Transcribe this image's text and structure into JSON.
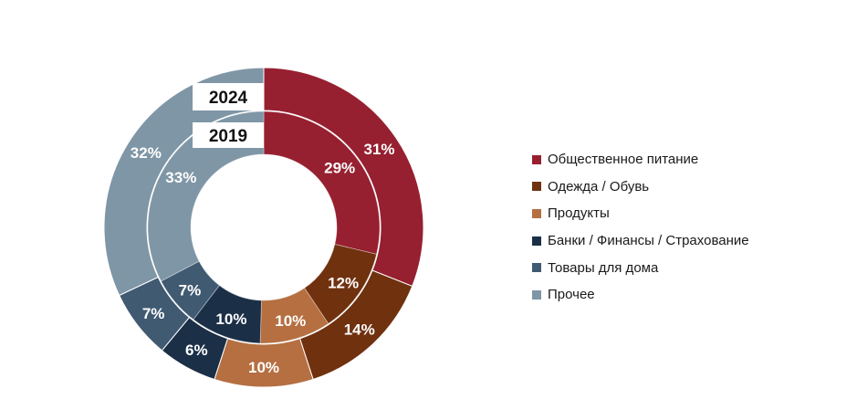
{
  "chart_data": {
    "type": "pie",
    "subtype": "nested-donut",
    "categories": [
      "Общественное питание",
      "Одежда / Обувь",
      "Продукты",
      "Банки / Финансы / Страхование",
      "Товары для дома",
      "Прочее"
    ],
    "colors": [
      "#962030",
      "#70310f",
      "#b56f41",
      "#1b2f47",
      "#405a72",
      "#7f96a6"
    ],
    "series": [
      {
        "name": "2024",
        "ring": "outer",
        "values": [
          31,
          14,
          10,
          6,
          7,
          32
        ]
      },
      {
        "name": "2019",
        "ring": "inner",
        "values": [
          29,
          12,
          10,
          10,
          7,
          33
        ]
      }
    ],
    "label_suffix": "%",
    "legend_position": "right"
  }
}
